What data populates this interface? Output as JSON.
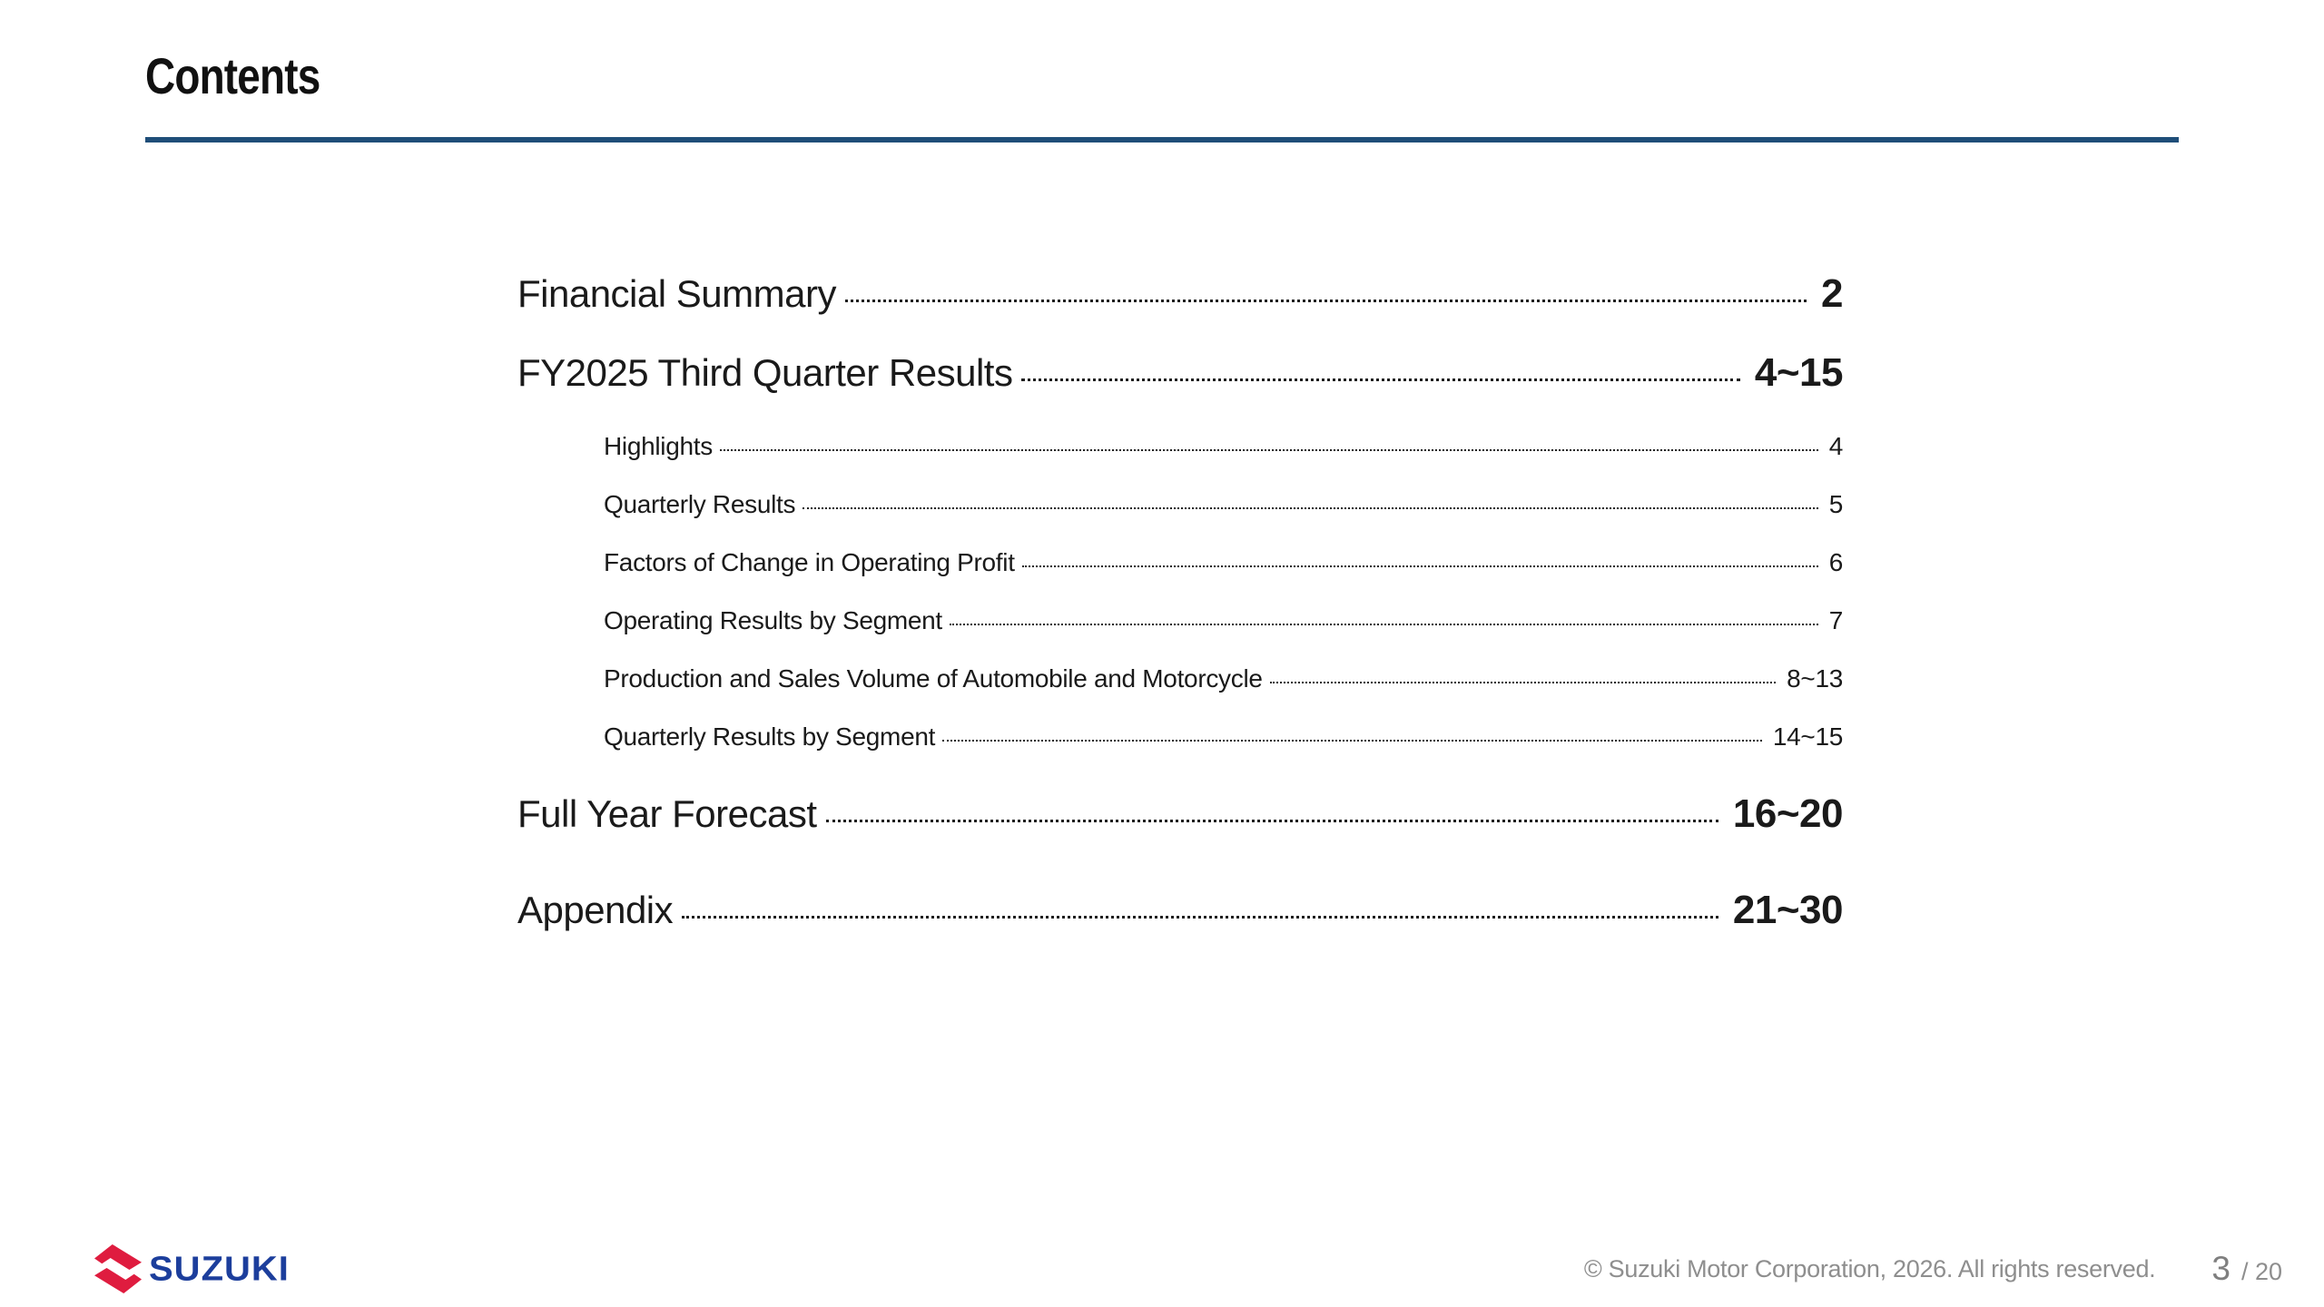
{
  "slide": {
    "title": "Contents",
    "copyright": "© Suzuki Motor Corporation, 2026. All rights reserved.",
    "page_current": "3",
    "page_total": "/ 20",
    "logo_text": "SUZUKI"
  },
  "toc": {
    "items": [
      {
        "label": "Financial Summary",
        "pages": "2",
        "level": 1
      },
      {
        "label": "FY2025 Third Quarter Results",
        "pages": "4~15",
        "level": 1
      },
      {
        "label": "Highlights",
        "pages": "4",
        "level": 2
      },
      {
        "label": "Quarterly Results",
        "pages": "5",
        "level": 2
      },
      {
        "label": "Factors of Change in Operating Profit",
        "pages": "6",
        "level": 2
      },
      {
        "label": "Operating Results by Segment",
        "pages": "7",
        "level": 2
      },
      {
        "label": "Production and Sales Volume of Automobile and Motorcycle",
        "pages": "8~13",
        "level": 2
      },
      {
        "label": "Quarterly Results by Segment",
        "pages": "14~15",
        "level": 2
      },
      {
        "label": "Full Year Forecast",
        "pages": "16~20",
        "level": 1
      },
      {
        "label": "Appendix",
        "pages": "21~30",
        "level": 1
      }
    ]
  },
  "colors": {
    "accent_blue": "#1F4E79",
    "suzuki_red": "#DF1C3F",
    "suzuki_blue": "#1C3E9C",
    "text": "#1A1A1A",
    "footer_gray": "#8E8E8E"
  }
}
